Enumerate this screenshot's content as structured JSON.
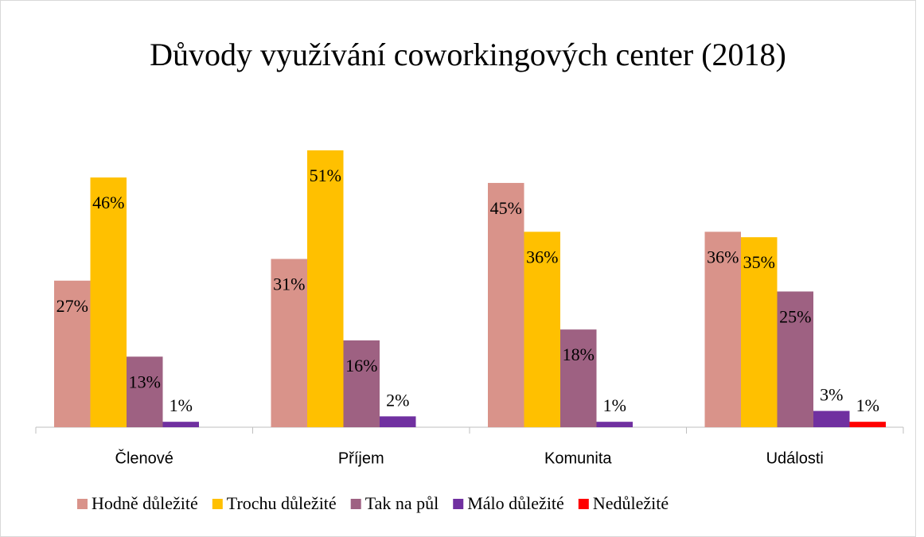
{
  "chart_data": {
    "type": "bar",
    "title": "Důvody využívání coworkingových center (2018)",
    "categories": [
      "Členové",
      "Příjem",
      "Komunita",
      "Události"
    ],
    "series": [
      {
        "name": "Hodně důležité",
        "color": "#d9938a",
        "values": [
          27,
          31,
          45,
          36
        ],
        "value_labels": [
          "27%",
          "31%",
          "45%",
          "36%"
        ]
      },
      {
        "name": "Trochu důležité",
        "color": "#ffc000",
        "values": [
          46,
          51,
          36,
          35
        ],
        "value_labels": [
          "46%",
          "51%",
          "36%",
          "35%"
        ]
      },
      {
        "name": "Tak na půl",
        "color": "#9e6182",
        "values": [
          13,
          16,
          18,
          25
        ],
        "value_labels": [
          "13%",
          "16%",
          "18%",
          "25%"
        ]
      },
      {
        "name": "Málo důležité",
        "color": "#7030a0",
        "values": [
          1,
          2,
          1,
          3
        ],
        "value_labels": [
          "1%",
          "2%",
          "1%",
          "3%"
        ]
      },
      {
        "name": "Nedůležité",
        "color": "#ff0000",
        "values": [
          null,
          null,
          null,
          1
        ],
        "value_labels": [
          null,
          null,
          null,
          "1%"
        ]
      }
    ],
    "legend": "bottom"
  }
}
